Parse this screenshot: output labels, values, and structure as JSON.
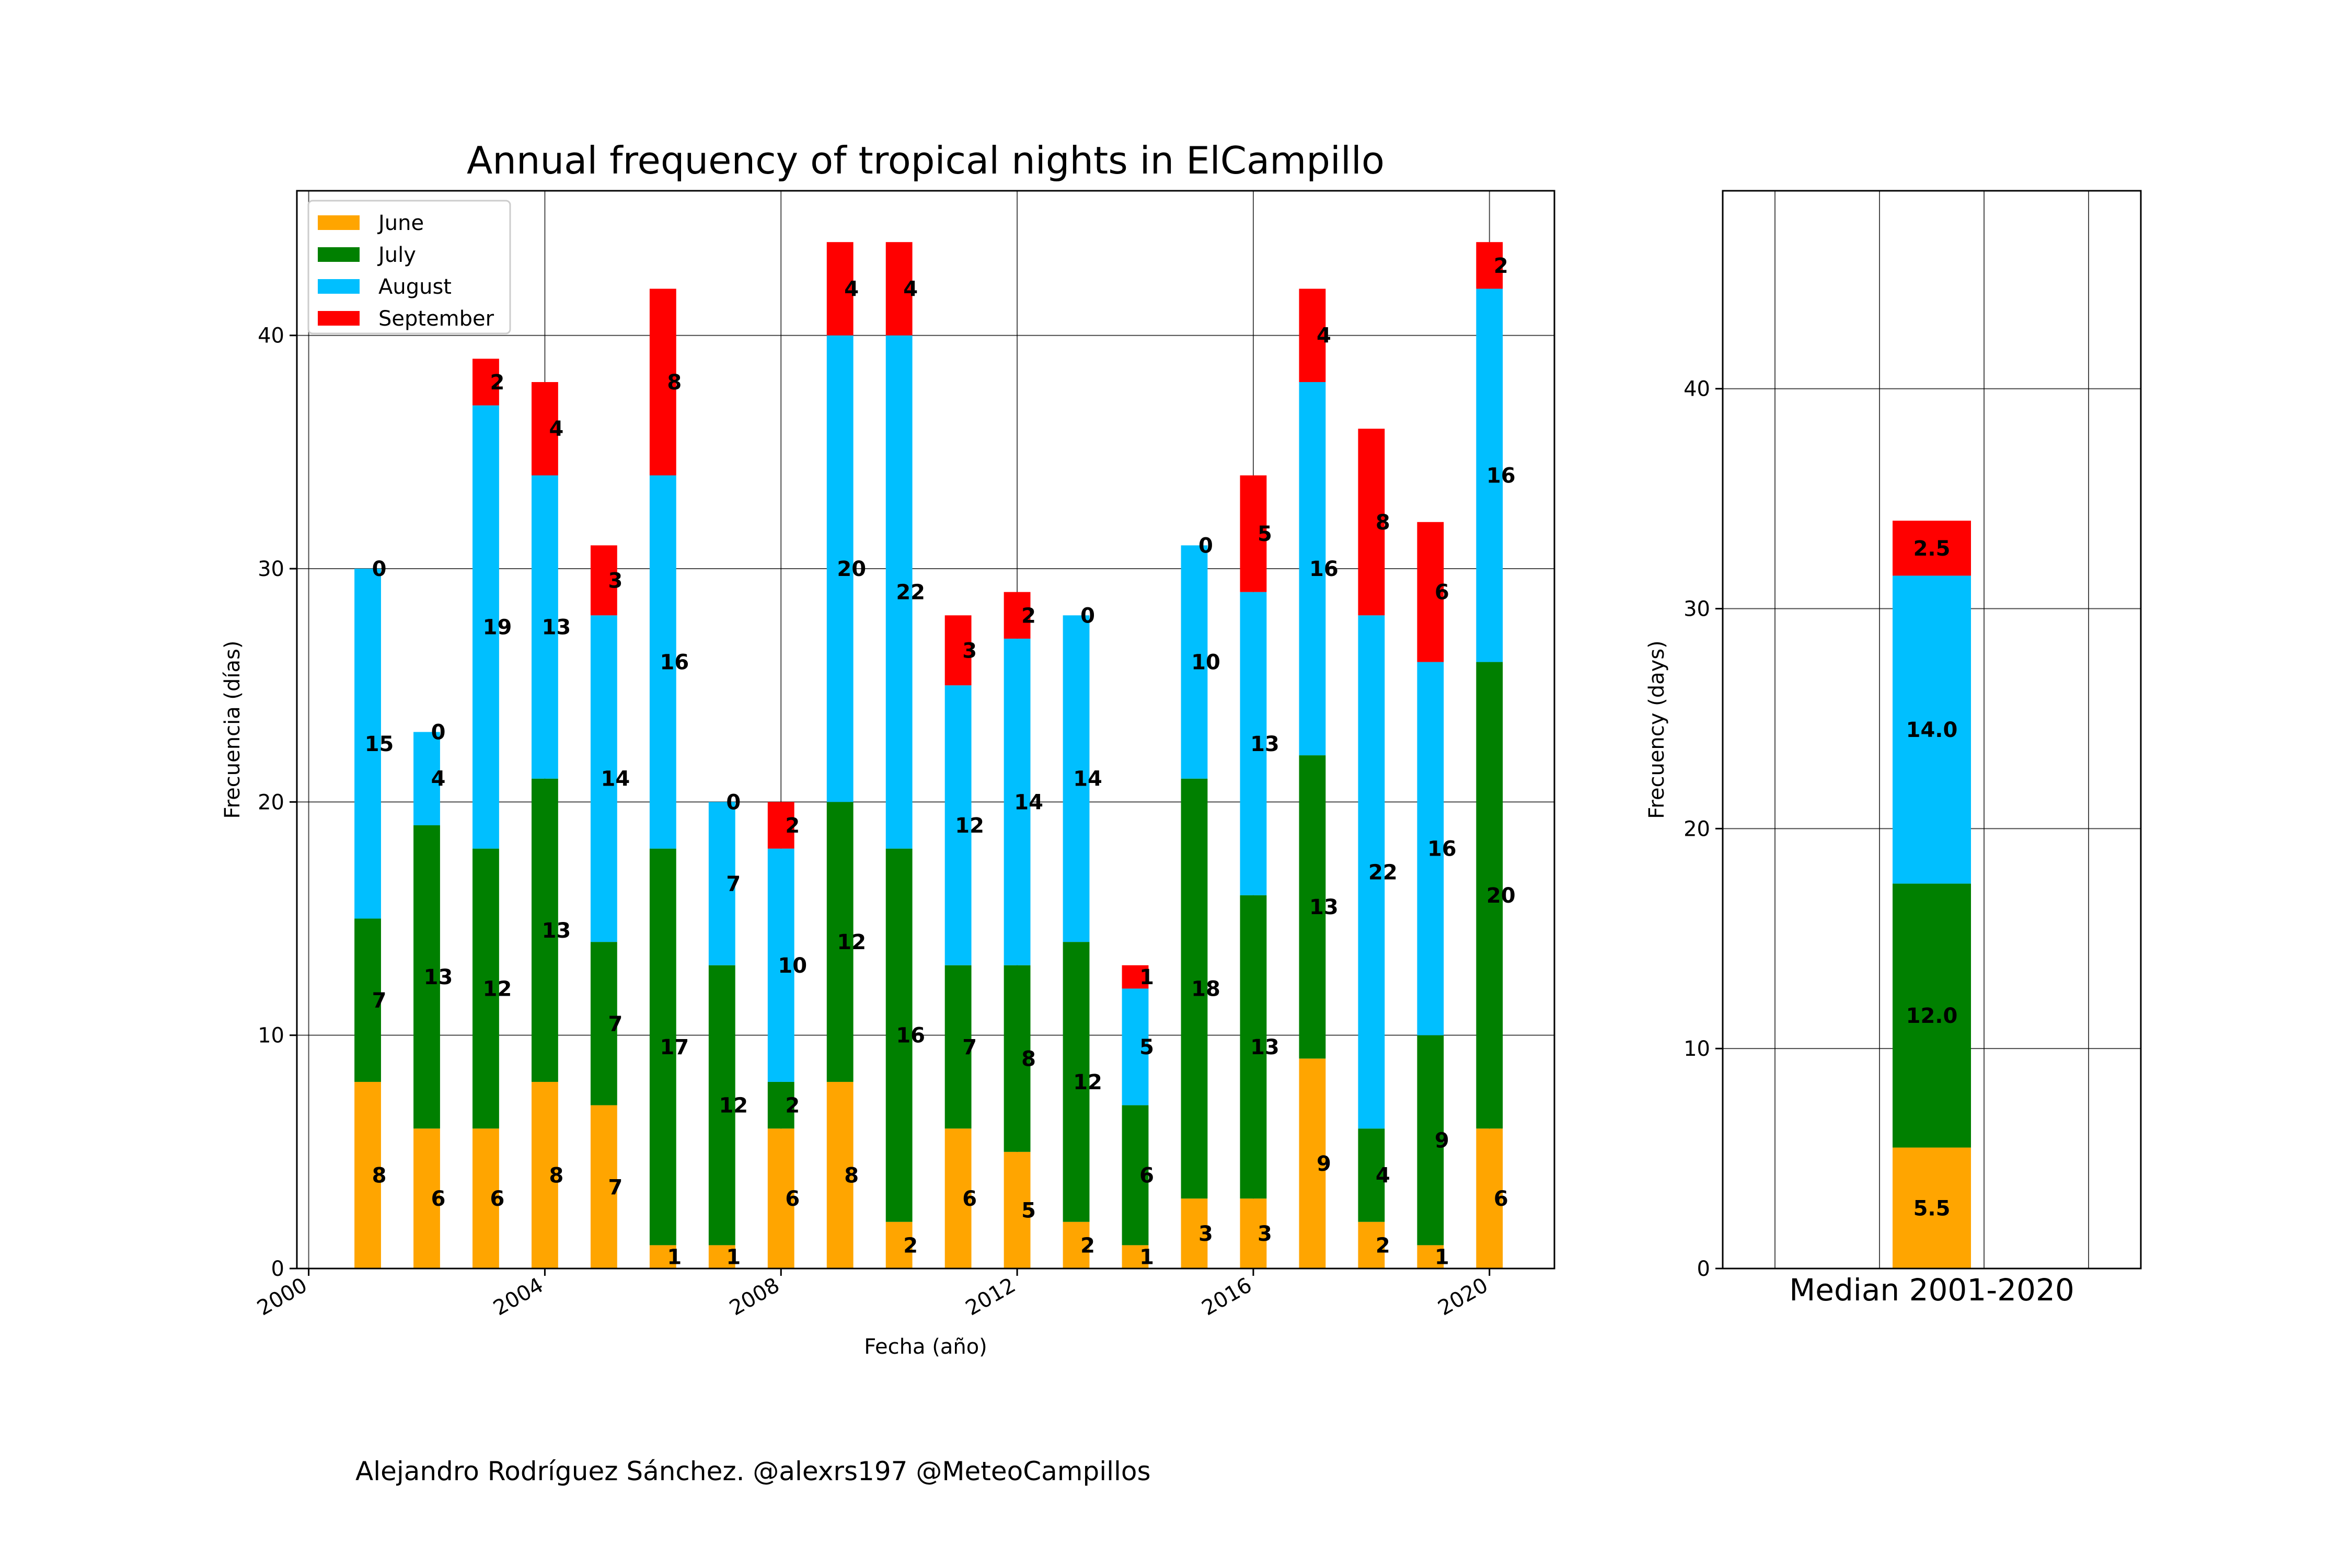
{
  "colors": {
    "June": "#FFA500",
    "July": "#008000",
    "August": "#00BFFF",
    "September": "#FF0000"
  },
  "credit": "Alejandro Rodríguez Sánchez. @alexrs197 @MeteoCampillos",
  "chart_data": [
    {
      "type": "bar",
      "stacked": true,
      "title": "Annual frequency of tropical nights in ElCampillo",
      "xlabel": "Fecha (año)",
      "ylabel": "Frecuencia (días)",
      "xlim": [
        1999.8,
        2021.1
      ],
      "ylim": [
        0,
        46.2
      ],
      "xticks": [
        2000,
        2004,
        2008,
        2012,
        2016,
        2020
      ],
      "yticks": [
        0,
        10,
        20,
        30,
        40
      ],
      "grid": true,
      "legend": "top-left",
      "x": [
        2001,
        2002,
        2003,
        2004,
        2005,
        2006,
        2007,
        2008,
        2009,
        2010,
        2011,
        2012,
        2013,
        2014,
        2015,
        2016,
        2017,
        2018,
        2019,
        2020
      ],
      "series": [
        {
          "name": "June",
          "values": [
            8,
            6,
            6,
            8,
            7,
            1,
            1,
            6,
            8,
            2,
            6,
            5,
            2,
            1,
            3,
            3,
            9,
            2,
            1,
            6
          ]
        },
        {
          "name": "July",
          "values": [
            7,
            13,
            12,
            13,
            7,
            17,
            12,
            2,
            12,
            16,
            7,
            8,
            12,
            6,
            18,
            13,
            13,
            4,
            9,
            20
          ]
        },
        {
          "name": "August",
          "values": [
            15,
            4,
            19,
            13,
            14,
            16,
            7,
            10,
            20,
            22,
            12,
            14,
            14,
            5,
            10,
            13,
            16,
            22,
            16,
            16
          ]
        },
        {
          "name": "September",
          "values": [
            0,
            0,
            2,
            4,
            3,
            8,
            0,
            2,
            4,
            4,
            3,
            2,
            0,
            1,
            0,
            5,
            4,
            8,
            6,
            2
          ]
        }
      ]
    },
    {
      "type": "bar",
      "stacked": true,
      "xlabel": "Median 2001-2020",
      "ylabel": "Frecuency (days)",
      "ylim": [
        0,
        49
      ],
      "yticks": [
        0,
        10,
        20,
        30,
        40
      ],
      "grid": true,
      "series": [
        {
          "name": "June",
          "values": [
            5.5
          ],
          "label": "5.5"
        },
        {
          "name": "July",
          "values": [
            12.0
          ],
          "label": "12.0"
        },
        {
          "name": "August",
          "values": [
            14.0
          ],
          "label": "14.0"
        },
        {
          "name": "September",
          "values": [
            2.5
          ],
          "label": "2.5"
        }
      ]
    }
  ]
}
